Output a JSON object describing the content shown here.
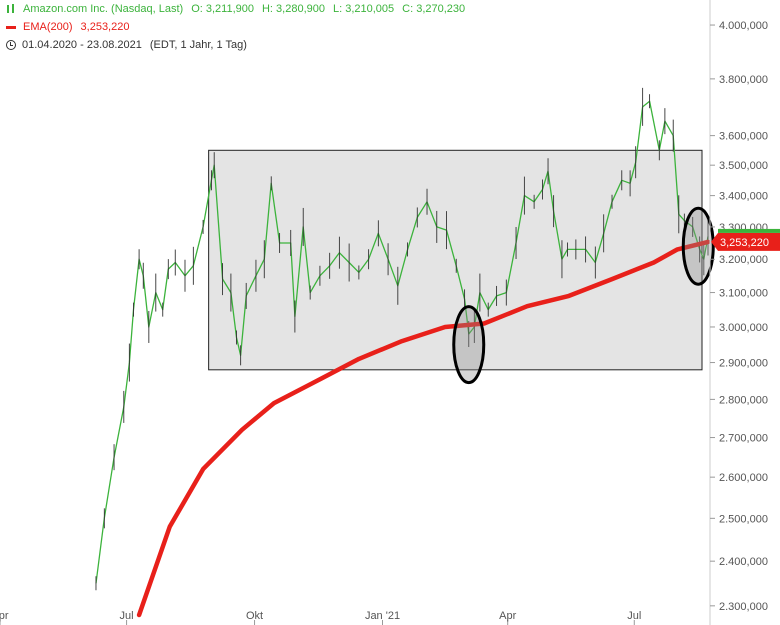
{
  "colors": {
    "price": "#3cb33c",
    "ema": "#e8201a",
    "axis_text": "#555555",
    "gridline": "#dddddd",
    "highlight_fill": "#e4e4e4",
    "annotation": "#000000"
  },
  "legend": {
    "symbol_icon": "candlestick-icon",
    "ema_icon": "line-icon",
    "range_icon": "clock-icon",
    "instrument": "Amazon.com Inc. (Nasdaq, Last)",
    "open": "O: 3,211,900",
    "high": "H: 3,280,900",
    "low": "L: 3,210,005",
    "close": "C: 3,270,230",
    "ema_label": "EMA(200)",
    "ema_value": "3,253,220",
    "date_range": "01.04.2020 - 23.08.2021",
    "settings": "(EDT, 1 Jahr, 1 Tag)"
  },
  "price_tag": "3,253,220",
  "chart_data": {
    "type": "line",
    "scale": "log",
    "ylim": [
      2280,
      4050
    ],
    "xlim": [
      "2020-04-01",
      "2021-08-23"
    ],
    "y_ticks": [
      {
        "value": 2300,
        "label": "2.300,000"
      },
      {
        "value": 2400,
        "label": "2.400,000"
      },
      {
        "value": 2500,
        "label": "2.500,000"
      },
      {
        "value": 2600,
        "label": "2.600,000"
      },
      {
        "value": 2700,
        "label": "2.700,000"
      },
      {
        "value": 2800,
        "label": "2.800,000"
      },
      {
        "value": 2900,
        "label": "2.900,000"
      },
      {
        "value": 3000,
        "label": "3.000,000"
      },
      {
        "value": 3100,
        "label": "3.100,000"
      },
      {
        "value": 3200,
        "label": "3.200,000"
      },
      {
        "value": 3300,
        "label": "3.300,000"
      },
      {
        "value": 3400,
        "label": "3.400,000"
      },
      {
        "value": 3500,
        "label": "3.500,000"
      },
      {
        "value": 3600,
        "label": "3.600,000"
      },
      {
        "value": 3800,
        "label": "3.800,000"
      },
      {
        "value": 4000,
        "label": "4.000,000"
      }
    ],
    "x_ticks": [
      {
        "date": "2020-04-01",
        "label": "Apr"
      },
      {
        "date": "2020-07-01",
        "label": "Jul"
      },
      {
        "date": "2020-10-01",
        "label": "Okt"
      },
      {
        "date": "2021-01-01",
        "label": "Jan '21"
      },
      {
        "date": "2021-04-01",
        "label": "Apr"
      },
      {
        "date": "2021-07-01",
        "label": "Jul"
      }
    ],
    "price_series": {
      "name": "Amazon.com Inc. (Nasdaq, Last)",
      "points": [
        [
          "2020-06-09",
          2350
        ],
        [
          "2020-06-15",
          2500
        ],
        [
          "2020-06-22",
          2650
        ],
        [
          "2020-06-29",
          2780
        ],
        [
          "2020-07-03",
          2900
        ],
        [
          "2020-07-06",
          3050
        ],
        [
          "2020-07-10",
          3200
        ],
        [
          "2020-07-13",
          3150
        ],
        [
          "2020-07-17",
          3000
        ],
        [
          "2020-07-22",
          3100
        ],
        [
          "2020-07-27",
          3050
        ],
        [
          "2020-07-31",
          3170
        ],
        [
          "2020-08-05",
          3190
        ],
        [
          "2020-08-12",
          3150
        ],
        [
          "2020-08-18",
          3180
        ],
        [
          "2020-08-25",
          3300
        ],
        [
          "2020-08-31",
          3450
        ],
        [
          "2020-09-02",
          3500
        ],
        [
          "2020-09-08",
          3140
        ],
        [
          "2020-09-14",
          3100
        ],
        [
          "2020-09-18",
          2970
        ],
        [
          "2020-09-21",
          2920
        ],
        [
          "2020-09-25",
          3090
        ],
        [
          "2020-10-02",
          3150
        ],
        [
          "2020-10-08",
          3200
        ],
        [
          "2020-10-13",
          3440
        ],
        [
          "2020-10-19",
          3250
        ],
        [
          "2020-10-27",
          3250
        ],
        [
          "2020-10-30",
          3030
        ],
        [
          "2020-11-05",
          3300
        ],
        [
          "2020-11-10",
          3100
        ],
        [
          "2020-11-17",
          3150
        ],
        [
          "2020-11-24",
          3180
        ],
        [
          "2020-12-01",
          3220
        ],
        [
          "2020-12-08",
          3190
        ],
        [
          "2020-12-15",
          3160
        ],
        [
          "2020-12-22",
          3200
        ],
        [
          "2020-12-29",
          3280
        ],
        [
          "2021-01-05",
          3200
        ],
        [
          "2021-01-12",
          3120
        ],
        [
          "2021-01-19",
          3230
        ],
        [
          "2021-01-26",
          3330
        ],
        [
          "2021-02-02",
          3380
        ],
        [
          "2021-02-09",
          3300
        ],
        [
          "2021-02-16",
          3290
        ],
        [
          "2021-02-23",
          3180
        ],
        [
          "2021-03-01",
          3080
        ],
        [
          "2021-03-04",
          2980
        ],
        [
          "2021-03-08",
          3000
        ],
        [
          "2021-03-12",
          3100
        ],
        [
          "2021-03-18",
          3050
        ],
        [
          "2021-03-24",
          3090
        ],
        [
          "2021-03-31",
          3100
        ],
        [
          "2021-04-07",
          3250
        ],
        [
          "2021-04-13",
          3400
        ],
        [
          "2021-04-20",
          3380
        ],
        [
          "2021-04-26",
          3420
        ],
        [
          "2021-04-30",
          3480
        ],
        [
          "2021-05-04",
          3350
        ],
        [
          "2021-05-10",
          3200
        ],
        [
          "2021-05-14",
          3230
        ],
        [
          "2021-05-20",
          3230
        ],
        [
          "2021-05-27",
          3230
        ],
        [
          "2021-06-03",
          3190
        ],
        [
          "2021-06-09",
          3280
        ],
        [
          "2021-06-15",
          3380
        ],
        [
          "2021-06-22",
          3450
        ],
        [
          "2021-06-28",
          3440
        ],
        [
          "2021-07-02",
          3510
        ],
        [
          "2021-07-07",
          3700
        ],
        [
          "2021-07-12",
          3720
        ],
        [
          "2021-07-19",
          3550
        ],
        [
          "2021-07-23",
          3650
        ],
        [
          "2021-07-29",
          3600
        ],
        [
          "2021-08-02",
          3340
        ],
        [
          "2021-08-06",
          3320
        ],
        [
          "2021-08-12",
          3300
        ],
        [
          "2021-08-17",
          3230
        ],
        [
          "2021-08-20",
          3200
        ],
        [
          "2021-08-23",
          3270
        ]
      ]
    },
    "ema_series": {
      "name": "EMA(200)",
      "points": [
        [
          "2020-07-10",
          2280
        ],
        [
          "2020-08-01",
          2480
        ],
        [
          "2020-08-25",
          2620
        ],
        [
          "2020-09-22",
          2720
        ],
        [
          "2020-10-15",
          2790
        ],
        [
          "2020-11-15",
          2850
        ],
        [
          "2020-12-15",
          2910
        ],
        [
          "2021-01-15",
          2960
        ],
        [
          "2021-02-15",
          3000
        ],
        [
          "2021-03-15",
          3010
        ],
        [
          "2021-04-15",
          3060
        ],
        [
          "2021-05-15",
          3090
        ],
        [
          "2021-06-15",
          3140
        ],
        [
          "2021-07-15",
          3190
        ],
        [
          "2021-08-01",
          3230
        ],
        [
          "2021-08-23",
          3253.22
        ]
      ]
    },
    "annotations": {
      "range_box": {
        "from": "2020-08-29",
        "to": "2021-08-23",
        "y_low": 2880,
        "y_high": 3550
      },
      "ellipses": [
        {
          "date": "2021-03-04",
          "value": 2950
        },
        {
          "date": "2021-08-16",
          "value": 3240
        }
      ]
    },
    "grid": false,
    "legend_position": "top-left"
  }
}
